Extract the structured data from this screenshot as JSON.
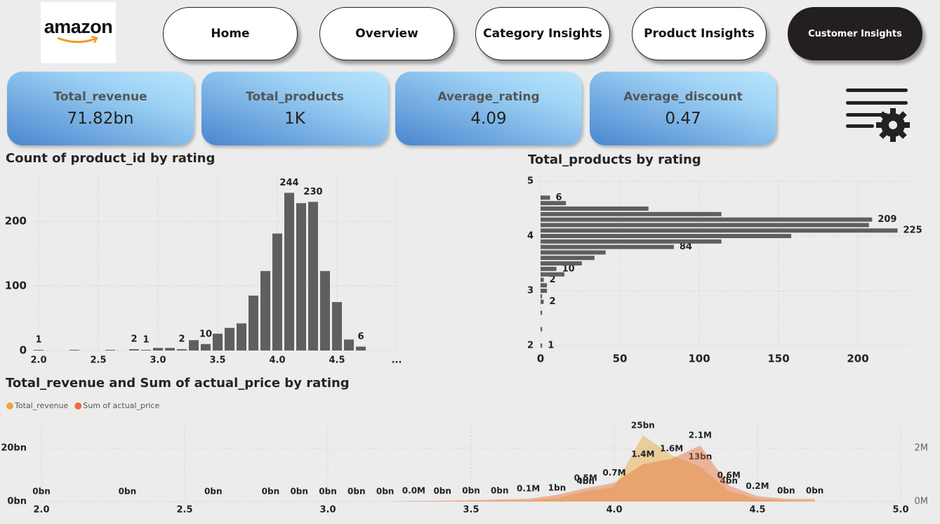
{
  "logo": "amazon",
  "nav": [
    "Home",
    "Overview",
    "Category Insights",
    "Product Insights",
    "Customer Insights"
  ],
  "kpis": [
    {
      "label": "Total_revenue",
      "value": "71.82bn"
    },
    {
      "label": "Total_products",
      "value": "1K"
    },
    {
      "label": "Average_rating",
      "value": "4.09"
    },
    {
      "label": "Average_discount",
      "value": "0.47"
    }
  ],
  "chart_data": [
    {
      "type": "bar",
      "title": "Count of product_id by rating",
      "x": [
        2.0,
        2.3,
        2.6,
        2.8,
        2.9,
        3.0,
        3.1,
        3.2,
        3.3,
        3.4,
        3.5,
        3.6,
        3.7,
        3.8,
        3.9,
        4.0,
        4.1,
        4.2,
        4.3,
        4.4,
        4.5,
        4.6,
        4.7
      ],
      "values": [
        1,
        1,
        1,
        2,
        1,
        4,
        4,
        2,
        16,
        10,
        26,
        35,
        42,
        85,
        123,
        181,
        244,
        228,
        230,
        123,
        75,
        17,
        6
      ],
      "value_labels": [
        "1",
        null,
        null,
        "2",
        "1",
        null,
        null,
        "2",
        null,
        "10",
        null,
        null,
        null,
        null,
        null,
        null,
        "244",
        null,
        "230",
        null,
        null,
        null,
        "6"
      ],
      "color": "#5f5f5f",
      "xlim": [
        1.95,
        5.0
      ],
      "xticks": [
        {
          "value": 2,
          "label": "2.0"
        },
        2.5,
        {
          "value": 3,
          "label": "3.0"
        },
        3.5,
        {
          "value": 4,
          "label": "4.0"
        },
        4.5,
        {
          "value": 5,
          "label": "..."
        }
      ],
      "ylim": [
        0,
        270
      ],
      "yticks": [
        0,
        100,
        200
      ],
      "grid": true
    },
    {
      "type": "hbar",
      "title": "Total_products by rating",
      "y": [
        2.0,
        2.3,
        2.6,
        2.8,
        2.9,
        3.0,
        3.1,
        3.2,
        3.3,
        3.4,
        3.5,
        3.6,
        3.7,
        3.8,
        3.9,
        4.0,
        4.1,
        4.2,
        4.3,
        4.4,
        4.5,
        4.6,
        4.7
      ],
      "values": [
        1,
        1,
        1,
        2,
        1,
        4,
        4,
        2,
        15,
        10,
        26,
        34,
        41,
        84,
        114,
        158,
        225,
        207,
        209,
        114,
        68,
        16,
        6
      ],
      "value_labels": [
        "1",
        null,
        null,
        "2",
        null,
        null,
        null,
        "2",
        null,
        "10",
        null,
        null,
        null,
        "84",
        null,
        null,
        "225",
        null,
        "209",
        null,
        null,
        null,
        "6"
      ],
      "color": "#5f5f5f",
      "xlim": [
        0,
        233
      ],
      "xticks": [
        0,
        50,
        100,
        150,
        200
      ],
      "ylim": [
        2,
        5
      ],
      "yticks": [
        2,
        3,
        4,
        5
      ],
      "grid": true
    },
    {
      "type": "area",
      "title": "Total_revenue and Sum of actual_price by rating",
      "x": [
        2.0,
        2.3,
        2.6,
        2.8,
        2.9,
        3.0,
        3.1,
        3.2,
        3.3,
        3.4,
        3.5,
        3.6,
        3.7,
        3.8,
        3.9,
        4.0,
        4.1,
        4.2,
        4.3,
        4.4,
        4.5,
        4.6,
        4.7
      ],
      "series": [
        {
          "name": "Total_revenue",
          "color": "#e8a838",
          "values": [
            0,
            0,
            0,
            0,
            0,
            0,
            0,
            0,
            0.1,
            0.1,
            0.2,
            0.3,
            0.4,
            1.3,
            3.8,
            5.5,
            24.8,
            17.4,
            13,
            4,
            1,
            0.3,
            0.2
          ],
          "value_labels": [
            "0bn",
            "0bn",
            "0bn",
            "0bn",
            "0bn",
            "0bn",
            "0bn",
            "0bn",
            null,
            "0bn",
            "0bn",
            "0bn",
            null,
            "1bn",
            "4bn",
            null,
            "25bn",
            null,
            "13bn",
            "4bn",
            null,
            "0bn",
            "0bn"
          ]
        },
        {
          "name": "Sum of actual_price",
          "color": "#e8703a",
          "axis": "y2",
          "values": [
            0,
            0,
            0,
            0,
            0,
            0,
            0,
            0,
            0.02,
            0.03,
            0.05,
            0.08,
            0.1,
            0.25,
            0.5,
            0.7,
            1.4,
            1.6,
            2.1,
            0.6,
            0.2,
            0.1,
            0.1
          ],
          "value_labels": [
            null,
            null,
            null,
            null,
            null,
            null,
            null,
            null,
            "0.0M",
            null,
            null,
            null,
            "0.1M",
            null,
            "0.5M",
            "0.7M",
            "1.4M",
            "1.6M",
            "2.1M",
            "0.6M",
            "0.2M",
            null,
            null
          ]
        }
      ],
      "xlim": [
        2,
        5
      ],
      "xticks": [
        {
          "value": 2,
          "label": "2.0"
        },
        2.5,
        {
          "value": 3,
          "label": "3.0"
        },
        3.5,
        {
          "value": 4,
          "label": "4.0"
        },
        4.5,
        {
          "value": 5,
          "label": "5.0"
        }
      ],
      "ylim": [
        0,
        30
      ],
      "yticks": [
        {
          "value": 0,
          "label": "0bn"
        },
        {
          "value": 20,
          "label": "20bn"
        }
      ],
      "y2lim": [
        0,
        3
      ],
      "y2ticks": [
        {
          "value": 0,
          "label": "0M"
        },
        {
          "value": 2,
          "label": "2M"
        }
      ],
      "grid": true,
      "legend": "top-left"
    }
  ]
}
